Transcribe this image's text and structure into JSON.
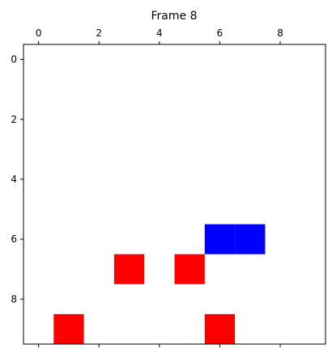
{
  "figure": {
    "title": "Frame 8",
    "background": "#ffffff"
  },
  "chart_data": {
    "type": "heatmap",
    "title": "Frame 8",
    "xlabel": "",
    "ylabel": "",
    "grid": false,
    "x_axis_position": "top",
    "y_axis_inverted": true,
    "xlim": [
      -0.5,
      9.5
    ],
    "ylim": [
      9.5,
      -0.5
    ],
    "x_ticks": [
      0,
      2,
      4,
      6,
      8
    ],
    "y_ticks": [
      0,
      2,
      4,
      6,
      8
    ],
    "x_tick_labels": [
      "0",
      "2",
      "4",
      "6",
      "8"
    ],
    "y_tick_labels": [
      "0",
      "2",
      "4",
      "6",
      "8"
    ],
    "cell_colors": {
      "empty": "#ffffff",
      "red": "#ff0000",
      "blue": "#0000ff"
    },
    "cells": [
      {
        "col": 6,
        "row": 6,
        "color": "blue"
      },
      {
        "col": 7,
        "row": 6,
        "color": "blue"
      },
      {
        "col": 3,
        "row": 7,
        "color": "red"
      },
      {
        "col": 5,
        "row": 7,
        "color": "red"
      },
      {
        "col": 1,
        "row": 9,
        "color": "red"
      },
      {
        "col": 6,
        "row": 9,
        "color": "red"
      }
    ]
  }
}
